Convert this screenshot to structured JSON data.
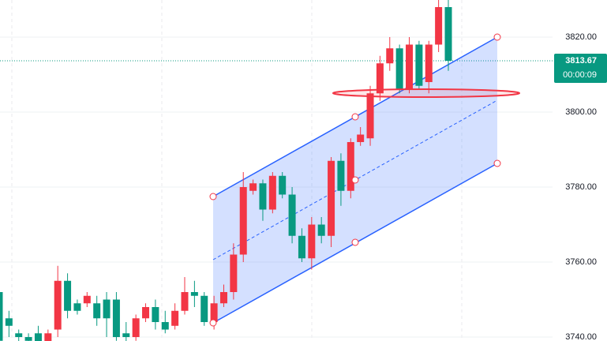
{
  "chart_data": {
    "type": "candlestick",
    "up_color": "#f23645",
    "down_color": "#089981",
    "open": [
      3752,
      3745,
      3741,
      3740,
      3741,
      3738,
      3742,
      3755,
      3749,
      3749,
      3749,
      3750,
      3750,
      3741,
      3740,
      3745,
      3748,
      3744,
      3743,
      3747,
      3752,
      3751,
      3744,
      3749,
      3752,
      3762,
      3779,
      3781,
      3774,
      3783,
      3778,
      3767,
      3761,
      3770,
      3767,
      3787,
      3779,
      3792,
      3793,
      3805,
      3813,
      3817,
      3806,
      3818,
      3808,
      3818,
      3828
    ],
    "high": [
      3754,
      3747,
      3742,
      3741,
      3743,
      3742,
      3759,
      3757,
      3750,
      3752,
      3751,
      3752,
      3752,
      3744,
      3746,
      3749,
      3750,
      3747,
      3749,
      3756,
      3755,
      3752,
      3751,
      3754,
      3765,
      3784,
      3782,
      3782,
      3784,
      3784,
      3780,
      3769,
      3772,
      3772,
      3788,
      3789,
      3793,
      3796,
      3807,
      3815,
      3820,
      3818,
      3820,
      3819,
      3819,
      3830,
      3830
    ],
    "low": [
      3738,
      3740,
      3738,
      3737,
      3737,
      3737,
      3740,
      3745,
      3746,
      3748,
      3743,
      3740,
      3739,
      3738,
      3739,
      3744,
      3742,
      3741,
      3742,
      3746,
      3748,
      3743,
      3742,
      3748,
      3750,
      3760,
      3778,
      3771,
      3773,
      3777,
      3765,
      3760,
      3758,
      3765,
      3764,
      3775,
      3777,
      3791,
      3791,
      3803,
      3811,
      3805,
      3805,
      3806,
      3805,
      3816,
      3811
    ],
    "close": [
      3739,
      3743,
      3740,
      3739,
      3738,
      3741,
      3755,
      3747,
      3747,
      3751,
      3745,
      3745,
      3740,
      3740,
      3745,
      3748,
      3744,
      3742,
      3747,
      3752,
      3751,
      3744,
      3749,
      3752,
      3762,
      3780,
      3781,
      3774,
      3783,
      3778,
      3767,
      3761,
      3770,
      3767,
      3787,
      3779,
      3792,
      3794,
      3805,
      3813,
      3817,
      3806,
      3818,
      3807,
      3818,
      3828,
      3813.67
    ],
    "ylim": [
      3738.95,
      3829.89
    ],
    "yticks": [
      {
        "value": 3740,
        "label": "3740.00"
      },
      {
        "value": 3760,
        "label": "3760.00"
      },
      {
        "value": 3780,
        "label": "3780.00"
      },
      {
        "value": 3800,
        "label": "3800.00"
      },
      {
        "value": 3820,
        "label": "3820.00"
      }
    ],
    "grid": true,
    "last_price": 3813.67,
    "countdown": "00:00:09"
  }
}
